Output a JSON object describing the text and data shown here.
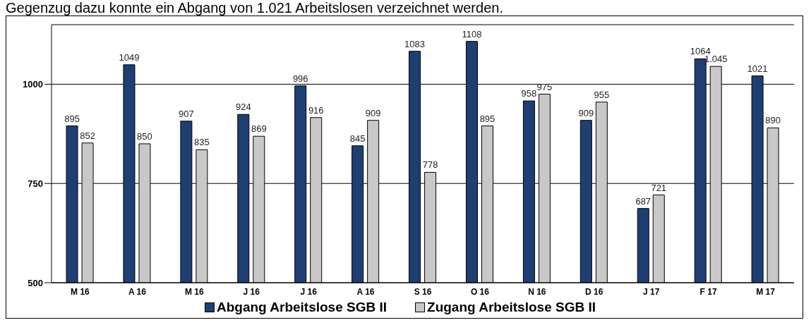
{
  "chart_data": {
    "type": "bar",
    "annotations": [
      "Gegenzug dazu konnte ein Abgang von 1.021 Arbeitslosen verzeichnet werden."
    ],
    "categories": [
      "M 16",
      "A 16",
      "M 16",
      "J 16",
      "J 16",
      "A 16",
      "S 16",
      "O 16",
      "N 16",
      "D 16",
      "J 17",
      "F 17",
      "M 17"
    ],
    "series": [
      {
        "name": "Abgang Arbeitslose SGB II",
        "color": "#1f3f73",
        "values": [
          895,
          1049,
          907,
          924,
          996,
          845,
          1083,
          1108,
          958,
          909,
          687,
          1064,
          1021
        ],
        "value_labels": [
          "895",
          "1049",
          "907",
          "924",
          "996",
          "845",
          "1083",
          "1108",
          "958",
          "909",
          "687",
          "1064",
          "1021"
        ]
      },
      {
        "name": "Zugang Arbeitslose SGB II",
        "color": "#c8c8c8",
        "values": [
          852,
          850,
          835,
          869,
          916,
          909,
          778,
          895,
          975,
          955,
          721,
          1045,
          890
        ],
        "value_labels": [
          "852",
          "850",
          "835",
          "869",
          "916",
          "909",
          "778",
          "895",
          "975",
          "955",
          "721",
          "1.045",
          "890"
        ]
      }
    ],
    "ylim": [
      500,
      1150
    ],
    "yticks": [
      500,
      750,
      1000
    ],
    "grid": "y",
    "legend": "bottom"
  }
}
